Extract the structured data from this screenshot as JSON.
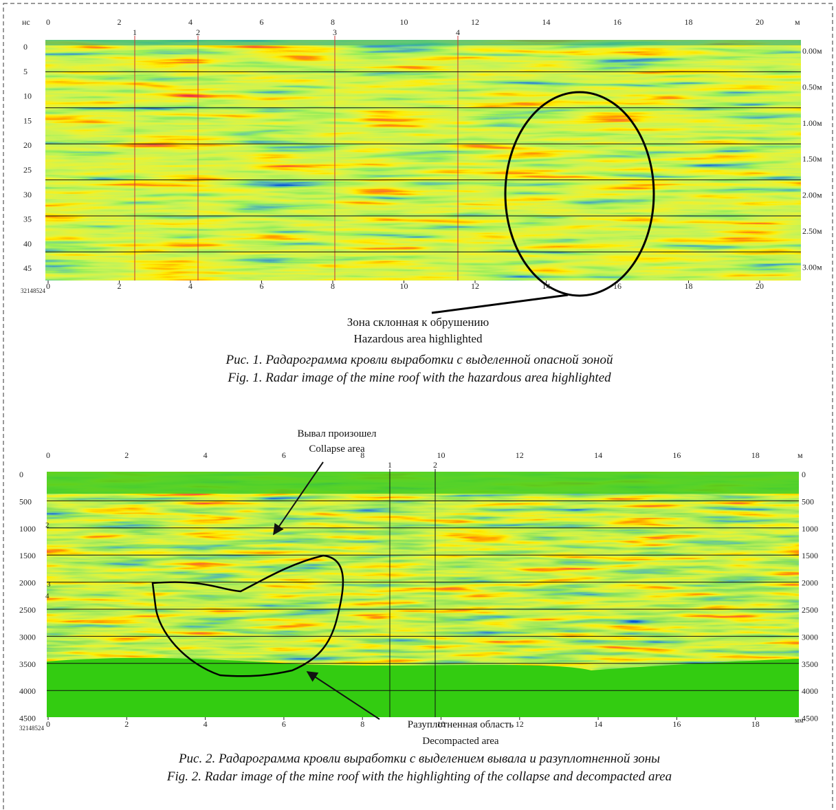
{
  "figure1": {
    "y_unit": "нс",
    "x_unit": "м",
    "top_axis": [
      "0",
      "2",
      "4",
      "6",
      "8",
      "10",
      "12",
      "14",
      "16",
      "18",
      "20"
    ],
    "markers": [
      "1",
      "2",
      "3",
      "4"
    ],
    "left_axis": [
      "0",
      "5",
      "10",
      "15",
      "20",
      "25",
      "30",
      "35",
      "40",
      "45"
    ],
    "right_axis": [
      "0.00м",
      "0.50м",
      "1.00м",
      "1.50м",
      "2.00м",
      "2.50м",
      "3.00м"
    ],
    "bottom_axis": [
      "0",
      "2",
      "4",
      "6",
      "8",
      "10",
      "12",
      "14",
      "16",
      "18",
      "20"
    ],
    "serial": "32148524",
    "annotation": [
      "Зона склонная к обрушению",
      "Hazardous area highlighted"
    ],
    "caption": [
      "Рис. 1. Радарограмма кровли выработки с выделенной опасной зоной",
      "Fig. 1. Radar image of the mine roof with the hazardous area highlighted"
    ]
  },
  "figure2": {
    "x_unit": "м",
    "top_axis": [
      "0",
      "2",
      "4",
      "6",
      "8",
      "10",
      "12",
      "14",
      "16",
      "18"
    ],
    "markers": [
      "1",
      "2"
    ],
    "side_markers": [
      "2",
      "3",
      "4"
    ],
    "left_axis": [
      "0",
      "500",
      "1000",
      "1500",
      "2000",
      "2500",
      "3000",
      "3500",
      "4000",
      "4500"
    ],
    "bottom_axis": [
      "0",
      "2",
      "4",
      "6",
      "8",
      "10",
      "12",
      "14",
      "16",
      "18"
    ],
    "bottom_unit": "мм",
    "serial": "32148524",
    "annotation_top": [
      "Вывал произошел",
      "Collapse area"
    ],
    "annotation_bottom": [
      "Разуплотненная область",
      "Decompacted  area"
    ],
    "caption": [
      "Рис. 2. Радарограмма кровли выработки с выделением вывала и разуплотненной зоны",
      "Fig. 2. Radar image of the mine roof with the highlighting of the collapse and decompacted area"
    ]
  }
}
